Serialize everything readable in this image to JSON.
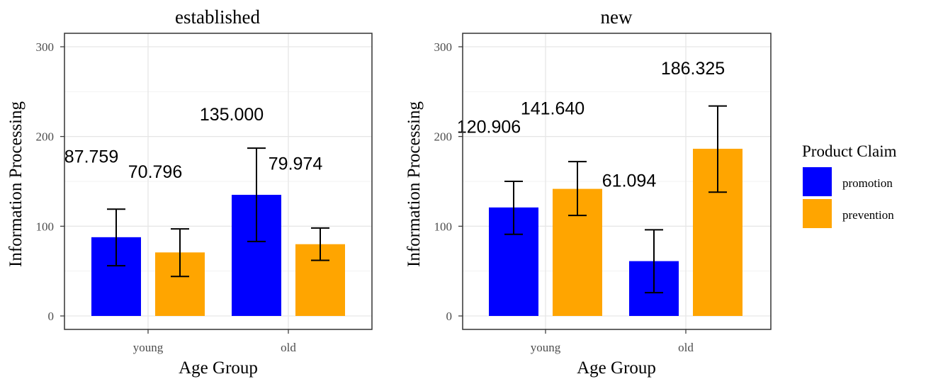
{
  "chart_data": {
    "type": "bar",
    "facets": [
      {
        "title": "established",
        "categories": [
          "young",
          "old"
        ],
        "series": [
          {
            "name": "promotion",
            "values": [
              87.759,
              135.0
            ],
            "error_low": [
              56,
              83
            ],
            "error_high": [
              119,
              187
            ],
            "labels": [
              "87.759",
              "135.000"
            ]
          },
          {
            "name": "prevention",
            "values": [
              70.796,
              79.974
            ],
            "error_low": [
              44,
              62
            ],
            "error_high": [
              97,
              98
            ],
            "labels": [
              "70.796",
              "79.974"
            ]
          }
        ]
      },
      {
        "title": "new",
        "categories": [
          "young",
          "old"
        ],
        "series": [
          {
            "name": "promotion",
            "values": [
              120.906,
              61.094
            ],
            "error_low": [
              91,
              26
            ],
            "error_high": [
              150,
              96
            ],
            "labels": [
              "120.906",
              "61.094"
            ]
          },
          {
            "name": "prevention",
            "values": [
              141.64,
              186.325
            ],
            "error_low": [
              112,
              138
            ],
            "error_high": [
              172,
              234
            ],
            "labels": [
              "141.640",
              "186.325"
            ]
          }
        ]
      }
    ],
    "xlabel": "Age Group",
    "ylabel": "Information Processing",
    "ylim": [
      0,
      300
    ],
    "yticks": [
      "0",
      "100",
      "200",
      "300"
    ],
    "grid": true,
    "legend": {
      "title": "Product Claim",
      "placement": "right",
      "entries": [
        {
          "name": "promotion",
          "color": "#0000ff"
        },
        {
          "name": "prevention",
          "color": "#ffa500"
        }
      ]
    },
    "colors": {
      "promotion": "#0000ff",
      "prevention": "#ffa500"
    }
  }
}
